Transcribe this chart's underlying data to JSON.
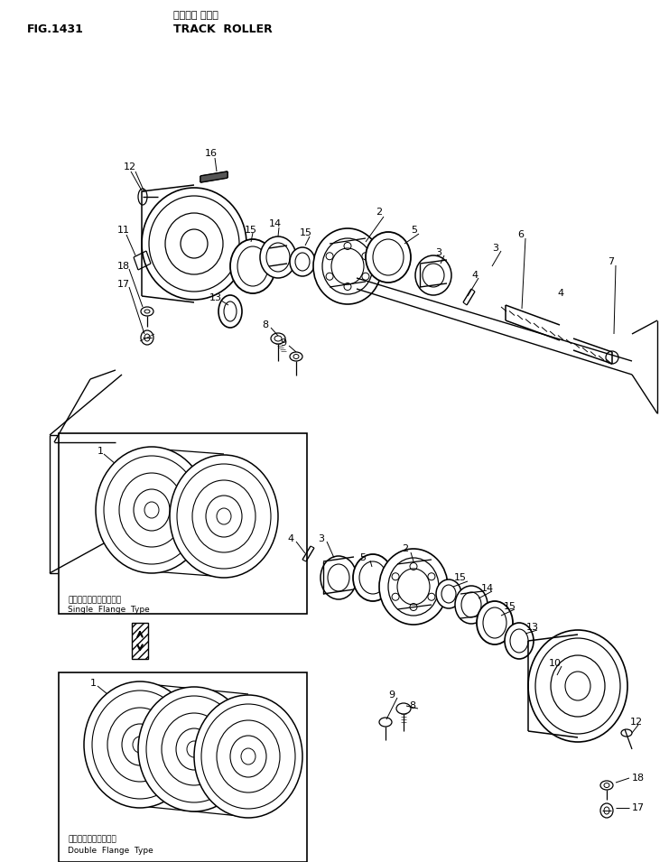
{
  "title_japanese": "トラック ローラ",
  "title_fig": "FIG.1431",
  "title_english": "TRACK  ROLLER",
  "bg_color": "#ffffff",
  "fig_width": 7.41,
  "fig_height": 9.55,
  "dpi": 100,
  "box1_label_jp": "シングルフランジタイプ",
  "box1_label_en": "Single  Flange  Type",
  "box2_label_jp": "ダブルフランジタイプ",
  "box2_label_en": "Double  Flange  Type"
}
